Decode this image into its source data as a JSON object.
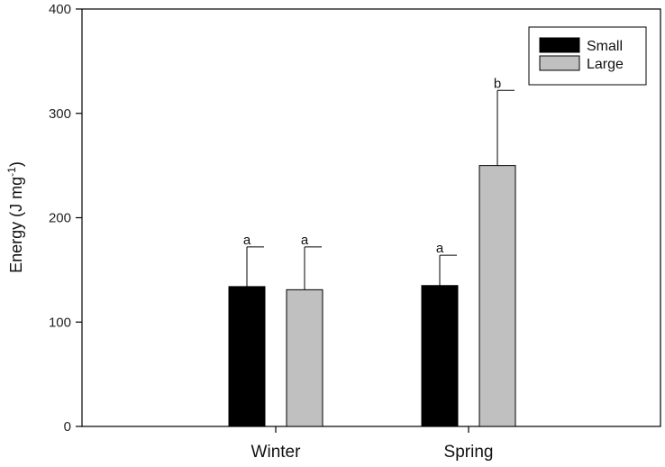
{
  "chart_data": {
    "type": "bar",
    "title": "",
    "xlabel": "",
    "ylabel": "Energy (J mg",
    "ylabel_sup": "-1",
    "ylabel_close": ")",
    "ylim": [
      0,
      400
    ],
    "yticks": [
      "0",
      "100",
      "200",
      "300",
      "400"
    ],
    "categories": [
      "Winter",
      "Spring"
    ],
    "legend_position": "top-right",
    "grid": false,
    "series": [
      {
        "name": "Small",
        "color": "#000000",
        "values": [
          134,
          135
        ],
        "errors": [
          38,
          29
        ],
        "significance": [
          "a",
          "a"
        ]
      },
      {
        "name": "Large",
        "color": "#c0c0c0",
        "values": [
          131,
          250
        ],
        "errors": [
          41,
          72
        ],
        "significance": [
          "a",
          "b"
        ]
      }
    ]
  }
}
